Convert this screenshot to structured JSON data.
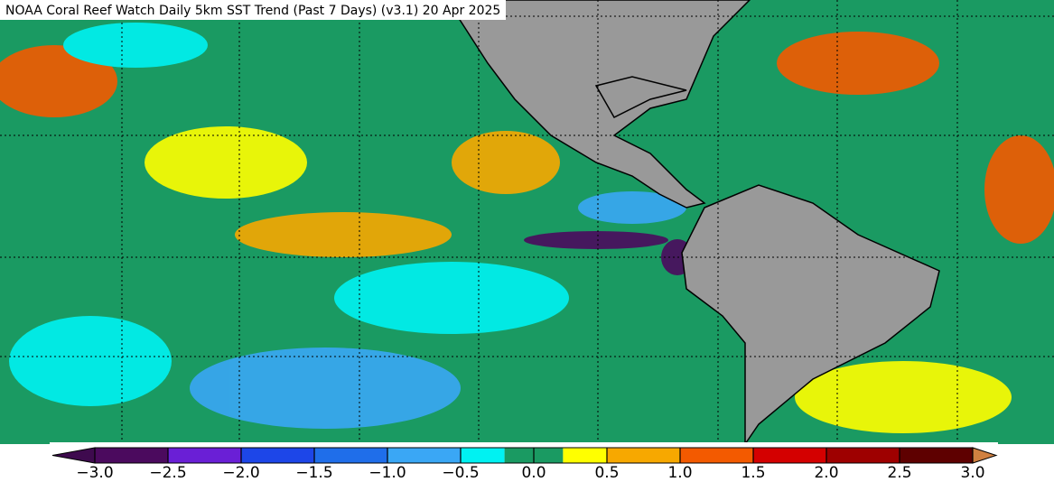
{
  "header": {
    "title": "NOAA Coral Reef Watch Daily 5km SST Trend (Past 7 Days)  (v3.1)   20 Apr 2025"
  },
  "colorbar": {
    "range": [
      -3,
      3
    ],
    "bounds": [
      -3,
      -2.5,
      -2,
      -1.5,
      -1,
      -0.5,
      -0.2,
      0.2,
      0.5,
      1,
      1.5,
      2,
      2.5,
      3
    ],
    "colors": [
      "#4b0a5e",
      "#6a1fd6",
      "#1d46e8",
      "#1f6eea",
      "#3aa7f5",
      "#00f2f2",
      "#1a9a62",
      "#ffff00",
      "#f7a800",
      "#f35a00",
      "#d40000",
      "#9e0000",
      "#5e0000"
    ],
    "under_color": "#3e0a4e",
    "over_color": "#d08040",
    "ticks": [
      {
        "value": -3,
        "label": "−3.0"
      },
      {
        "value": -2.5,
        "label": "−2.5"
      },
      {
        "value": -2,
        "label": "−2.0"
      },
      {
        "value": -1.5,
        "label": "−1.5"
      },
      {
        "value": -1,
        "label": "−1.0"
      },
      {
        "value": -0.5,
        "label": "−0.5"
      },
      {
        "value": 0,
        "label": "0.0"
      },
      {
        "value": 0.5,
        "label": "0.5"
      },
      {
        "value": 1,
        "label": "1.0"
      },
      {
        "value": 1.5,
        "label": "1.5"
      },
      {
        "value": 2,
        "label": "2.0"
      },
      {
        "value": 2.5,
        "label": "2.5"
      },
      {
        "value": 3,
        "label": "3.0"
      }
    ]
  }
}
